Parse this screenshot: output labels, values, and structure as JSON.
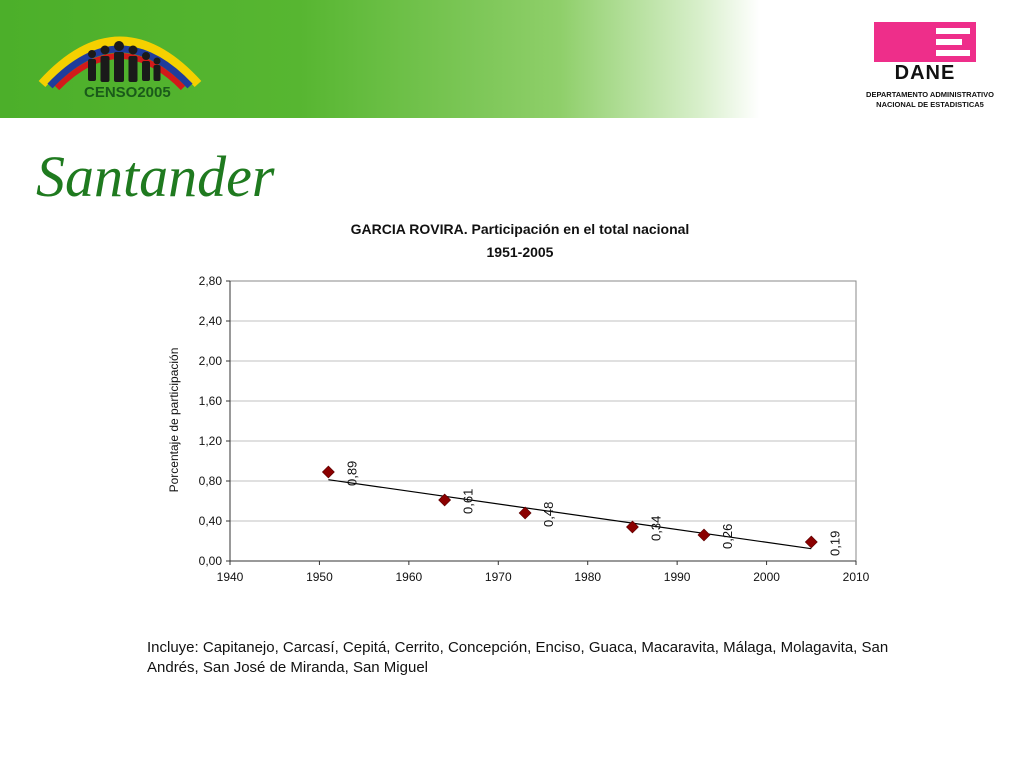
{
  "header": {
    "censo_logo_text": "CENSO2005",
    "dane_logo_text": "DANE",
    "dane_subtitle_line1": "DEPARTAMENTO ADMINISTRATIVO",
    "dane_subtitle_line2": "NACIONAL DE ESTADISTICA5",
    "colors": {
      "banner_green": "#4caf2a",
      "dane_pink": "#ee2e8a",
      "arc_yellow": "#f5d000",
      "arc_blue": "#1f3c9c",
      "arc_red": "#d21a1a"
    }
  },
  "page": {
    "title": "Santander",
    "title_color": "#1f7a1f",
    "caption": "Incluye: Capitanejo, Carcasí, Cepitá, Cerrito, Concepción, Enciso, Guaca, Macaravita, Málaga, Molagavita, San Andrés, San José de Miranda, San Miguel"
  },
  "chart_data": {
    "type": "scatter",
    "title": "GARCIA ROVIRA. Participación en el total nacional",
    "subtitle": "1951-2005",
    "xlabel": "",
    "ylabel": "Porcentaje de participación",
    "xlim": [
      1940,
      2010
    ],
    "ylim": [
      0,
      2.8
    ],
    "x_ticks": [
      "1940",
      "1950",
      "1960",
      "1970",
      "1980",
      "1990",
      "2000",
      "2010"
    ],
    "y_ticks": [
      "0,00",
      "0,40",
      "0,80",
      "1,20",
      "1,60",
      "2,00",
      "2,40",
      "2,80"
    ],
    "grid": true,
    "trendline": true,
    "marker_color": "#8b0000",
    "series": [
      {
        "x": [
          1951,
          1964,
          1973,
          1985,
          1993,
          2005
        ],
        "y": [
          0.89,
          0.61,
          0.48,
          0.34,
          0.26,
          0.19
        ],
        "labels": [
          "0,89",
          "0,61",
          "0,48",
          "0,34",
          "0,26",
          "0,19"
        ]
      }
    ]
  }
}
